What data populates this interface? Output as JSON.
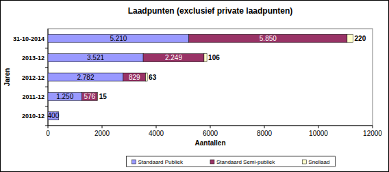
{
  "chart_data": {
    "type": "bar",
    "orientation": "horizontal",
    "stacked": true,
    "title": "Laadpunten (exclusief private laadpunten)",
    "x_label": "Aantallen",
    "y_label": "Jaren",
    "categories": [
      "2010-12",
      "2011-12",
      "2012-12",
      "2013-12",
      "31-10-2014"
    ],
    "series": [
      {
        "name": "Standaard Publiek",
        "color": "#9999ff",
        "values": [
          400,
          1250,
          2782,
          3521,
          5210
        ],
        "value_labels": [
          "400",
          "1.250",
          "2.782",
          "3.521",
          "5.210"
        ]
      },
      {
        "name": "Standaard Semi-publiek",
        "color": "#993366",
        "values": [
          null,
          576,
          829,
          2249,
          5850
        ],
        "value_labels": [
          null,
          "576",
          "829",
          "2.249",
          "5.850"
        ]
      },
      {
        "name": "Snellaad",
        "color": "#ffffcc",
        "values": [
          null,
          15,
          63,
          106,
          220
        ]
      }
    ],
    "xlim": [
      0,
      12000
    ],
    "xticks": [
      0,
      2000,
      4000,
      6000,
      8000,
      10000,
      12000
    ],
    "grid": false,
    "legend": "bottom",
    "data_labels": true
  }
}
